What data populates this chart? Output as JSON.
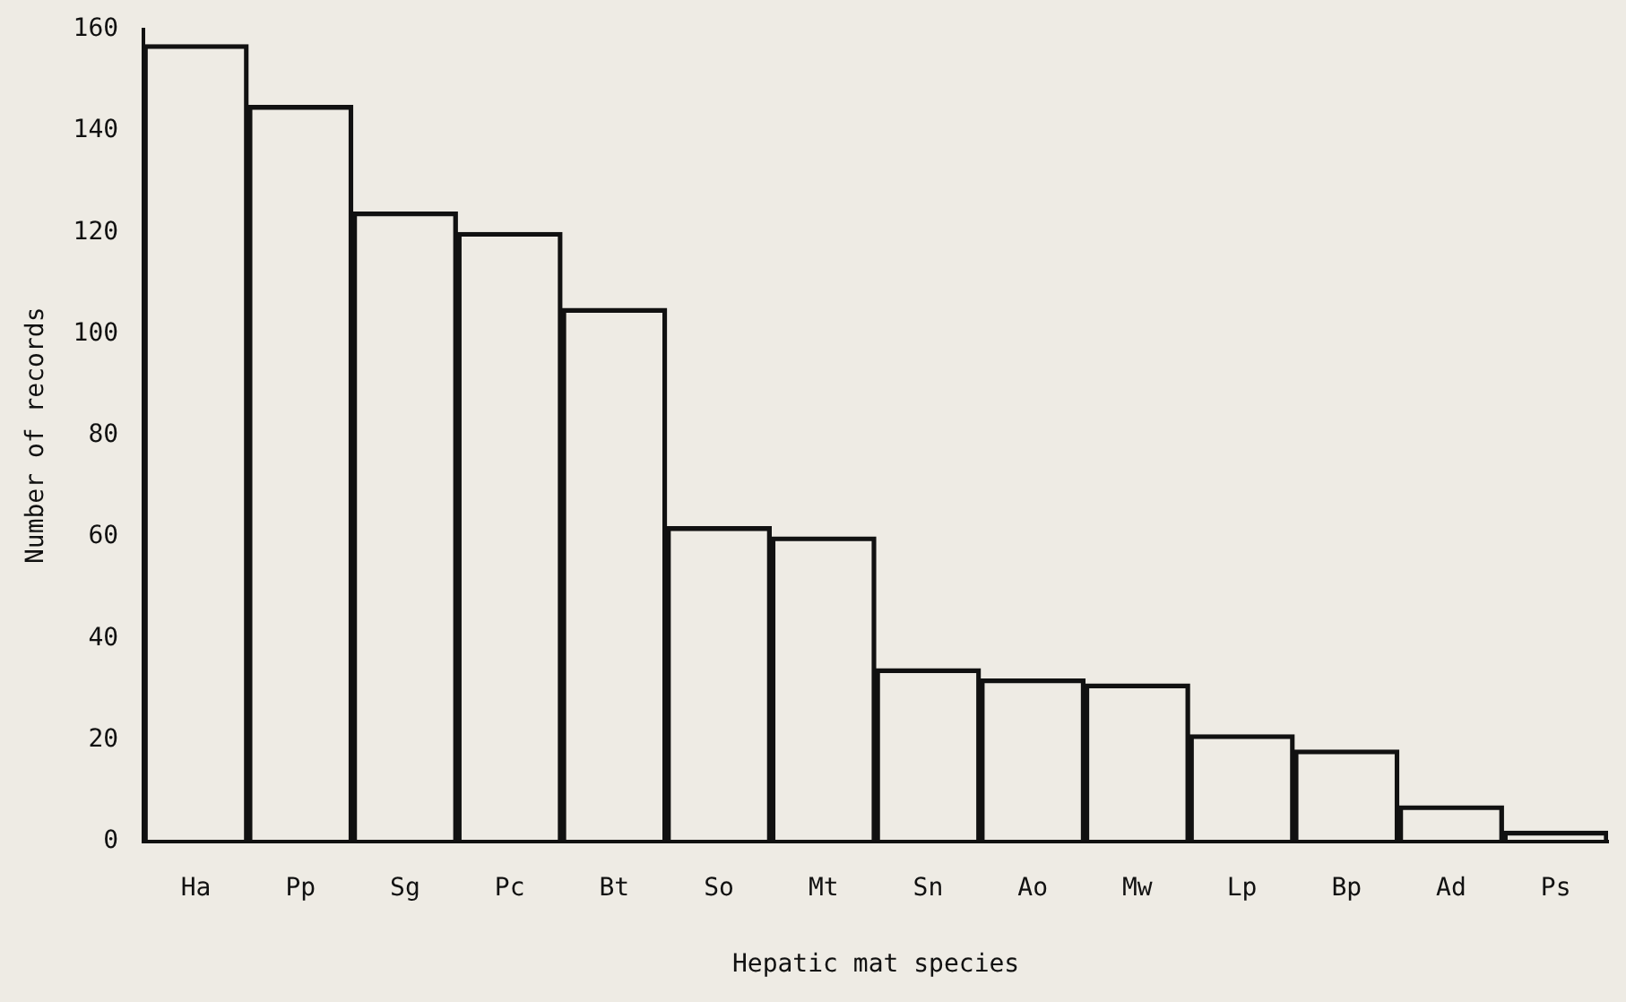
{
  "chart_data": {
    "type": "bar",
    "xlabel": "Hepatic mat species",
    "ylabel": "Number of records",
    "categories": [
      "Ha",
      "Pp",
      "Sg",
      "Pc",
      "Bt",
      "So",
      "Mt",
      "Sn",
      "Ao",
      "Mw",
      "Lp",
      "Bp",
      "Ad",
      "Ps"
    ],
    "values": [
      157,
      145,
      124,
      120,
      105,
      62,
      60,
      34,
      32,
      31,
      21,
      18,
      7,
      2
    ],
    "color": "#111111",
    "ylim": [
      0,
      160
    ],
    "yticks": [
      0,
      20,
      40,
      60,
      80,
      100,
      120,
      140,
      160
    ],
    "grid": false,
    "legend": false
  }
}
